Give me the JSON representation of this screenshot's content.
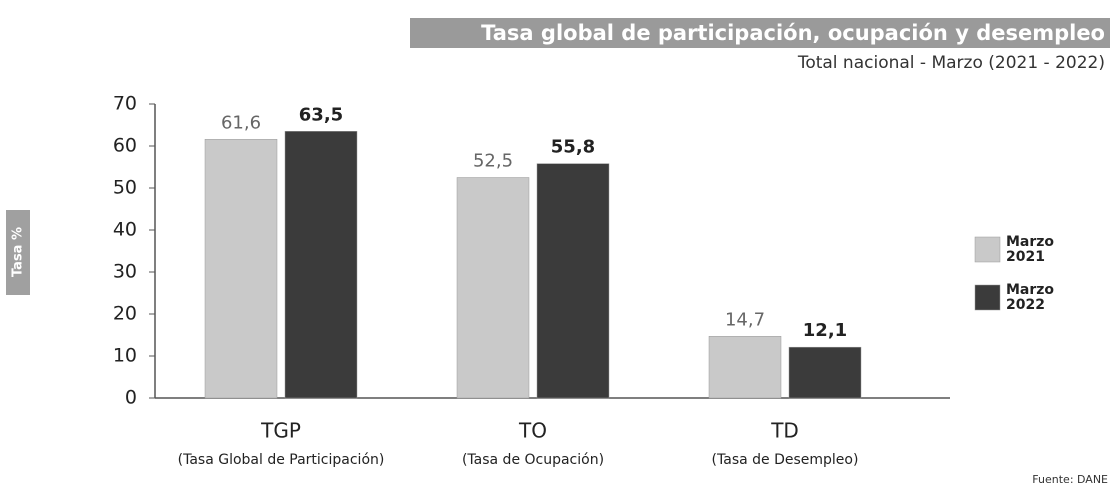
{
  "chart_data": {
    "type": "bar",
    "title": "Tasa global de participación, ocupación y desempleo",
    "subtitle": "Total nacional - Marzo (2021 - 2022)",
    "y_label": "Tasa %",
    "source": "Fuente: DANE",
    "categories": [
      "TGP",
      "TO",
      "TD"
    ],
    "category_descriptions": [
      "(Tasa Global de Participación)",
      "(Tasa de Ocupación)",
      "(Tasa de Desempleo)"
    ],
    "series": [
      {
        "name": "Marzo 2021",
        "color": "#c9c9c9",
        "values": [
          61.6,
          52.5,
          14.7
        ],
        "value_labels": [
          "61,6",
          "52,5",
          "14,7"
        ]
      },
      {
        "name": "Marzo 2022",
        "color": "#3b3b3b",
        "values": [
          63.5,
          55.8,
          12.1
        ],
        "value_labels": [
          "63,5",
          "55,8",
          "12,1"
        ]
      }
    ],
    "ylim": [
      0,
      70
    ],
    "yticks": [
      0,
      10,
      20,
      30,
      40,
      50,
      60,
      70
    ],
    "grid": false,
    "legend": "right"
  }
}
